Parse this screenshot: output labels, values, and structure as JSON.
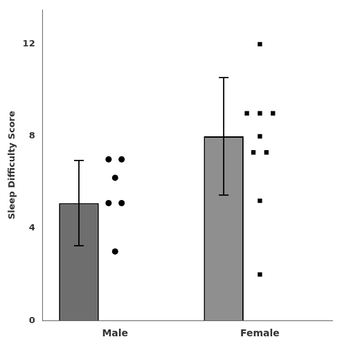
{
  "chart_data": {
    "type": "bar",
    "categories": [
      "Male",
      "Female"
    ],
    "values": [
      5.1,
      8.0
    ],
    "colors": [
      "#6e6e6e",
      "#8f8f8f"
    ],
    "color": "#000000",
    "error_bars": [
      1.85,
      2.55
    ],
    "points": [
      {
        "marker": "circle",
        "values": [
          7.0,
          7.0,
          6.2,
          5.1,
          5.1,
          3.0
        ]
      },
      {
        "marker": "square",
        "values": [
          12.0,
          9.0,
          9.0,
          9.0,
          8.0,
          7.3,
          7.3,
          5.2,
          2.0
        ]
      }
    ],
    "ylabel": "Sleep Difficulty Score",
    "ylim": [
      0,
      13.5
    ],
    "yticks": [
      0,
      4,
      8,
      12
    ],
    "grid": false
  }
}
